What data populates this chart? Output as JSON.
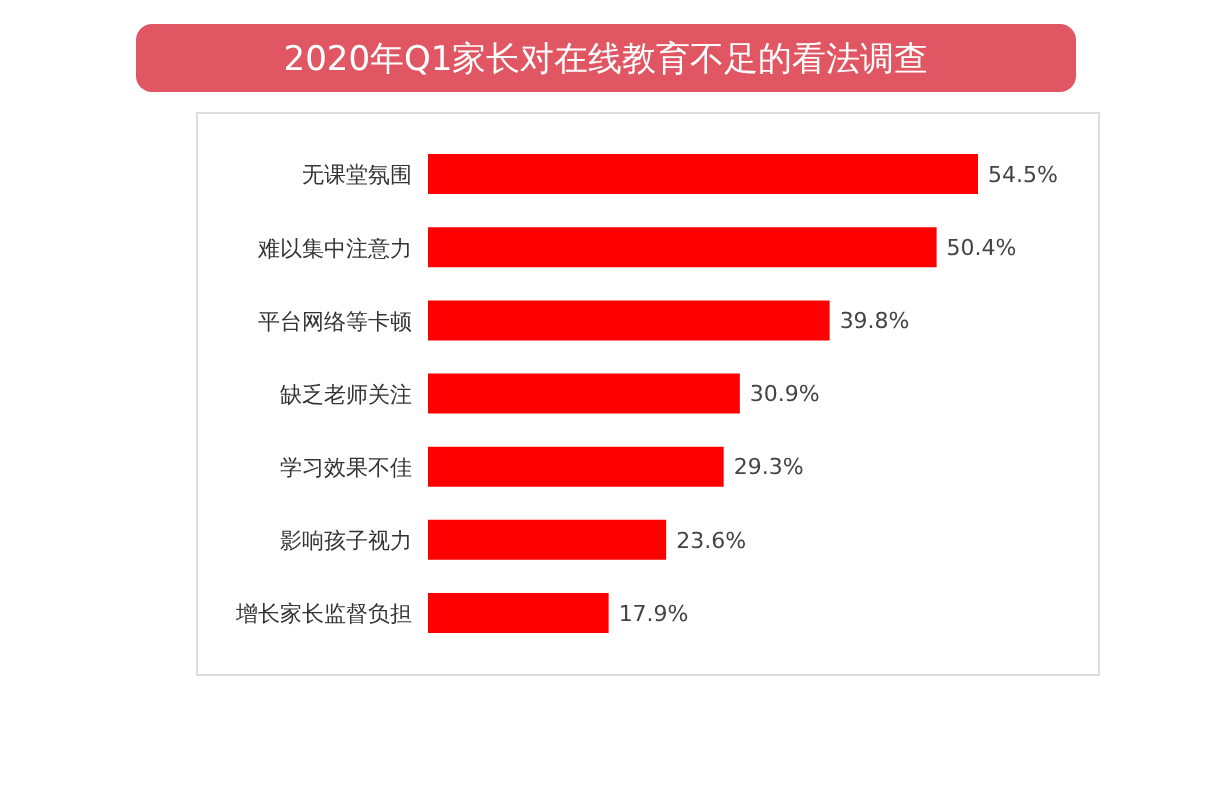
{
  "chart_data": {
    "type": "bar",
    "orientation": "horizontal",
    "title": "2020年Q1家长对在线教育不足的看法调查",
    "categories": [
      "无课堂氛围",
      "难以集中注意力",
      "平台网络等卡顿",
      "缺乏老师关注",
      "学习效果不佳",
      "影响孩子视力",
      "增长家长监督负担"
    ],
    "values": [
      54.5,
      50.4,
      39.8,
      30.9,
      29.3,
      23.6,
      17.9
    ],
    "value_labels": [
      "54.5%",
      "50.4%",
      "39.8%",
      "30.9%",
      "29.3%",
      "23.6%",
      "17.9%"
    ],
    "color": "#ff0000"
  }
}
